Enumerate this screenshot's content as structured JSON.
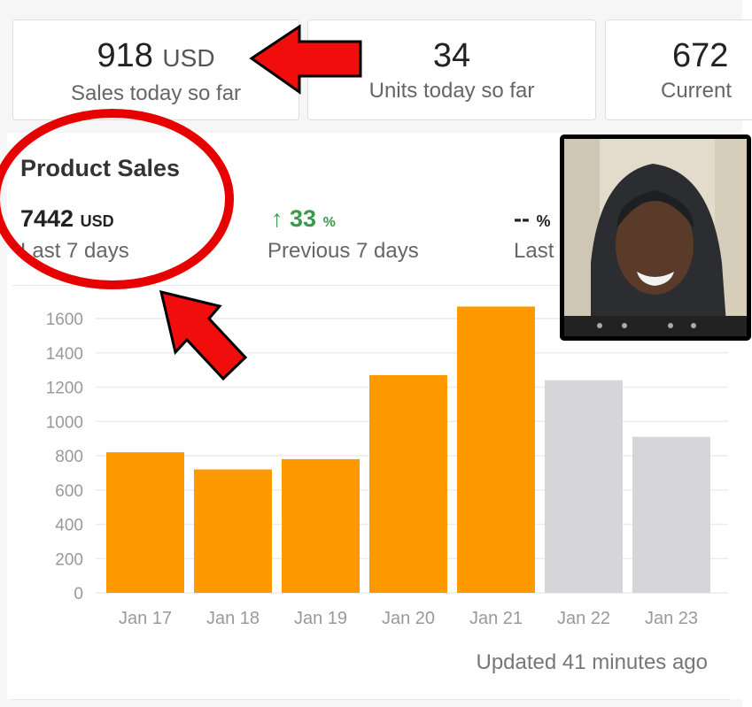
{
  "summary_cards": [
    {
      "value": "918",
      "unit": "USD",
      "label": "Sales today so far"
    },
    {
      "value": "34",
      "unit": "",
      "label": "Units today so far"
    },
    {
      "value": "672",
      "unit": "",
      "label": "Current"
    }
  ],
  "product_sales": {
    "title": "Product Sales",
    "total_value": "7442",
    "total_unit": "USD",
    "total_label": "Last 7 days",
    "change_arrow": "↑",
    "change_value": "33",
    "change_unit": "%",
    "change_label": "Previous 7 days",
    "third_value": "--",
    "third_unit": "%",
    "third_label": "Last"
  },
  "chart_data": {
    "type": "bar",
    "categories": [
      "Jan 17",
      "Jan 18",
      "Jan 19",
      "Jan 20",
      "Jan 21",
      "Jan 22",
      "Jan 23"
    ],
    "values": [
      820,
      720,
      780,
      1270,
      1670,
      1240,
      910
    ],
    "highlighted": [
      true,
      true,
      true,
      true,
      true,
      false,
      false
    ],
    "ylim": [
      0,
      1600
    ],
    "yticks": [
      0,
      200,
      400,
      600,
      800,
      1000,
      1200,
      1400,
      1600
    ],
    "title": "",
    "xlabel": "",
    "ylabel": "",
    "grid": true,
    "colors": {
      "active": "#ff9900",
      "inactive": "#d6d6d9"
    }
  },
  "updated_text": "Updated 41 minutes ago",
  "annotation_colors": {
    "circle": "#e60000",
    "arrow": "#f20d0d",
    "arrow_outline": "#000000"
  },
  "webcam": {
    "icon": "webcam-overlay"
  }
}
